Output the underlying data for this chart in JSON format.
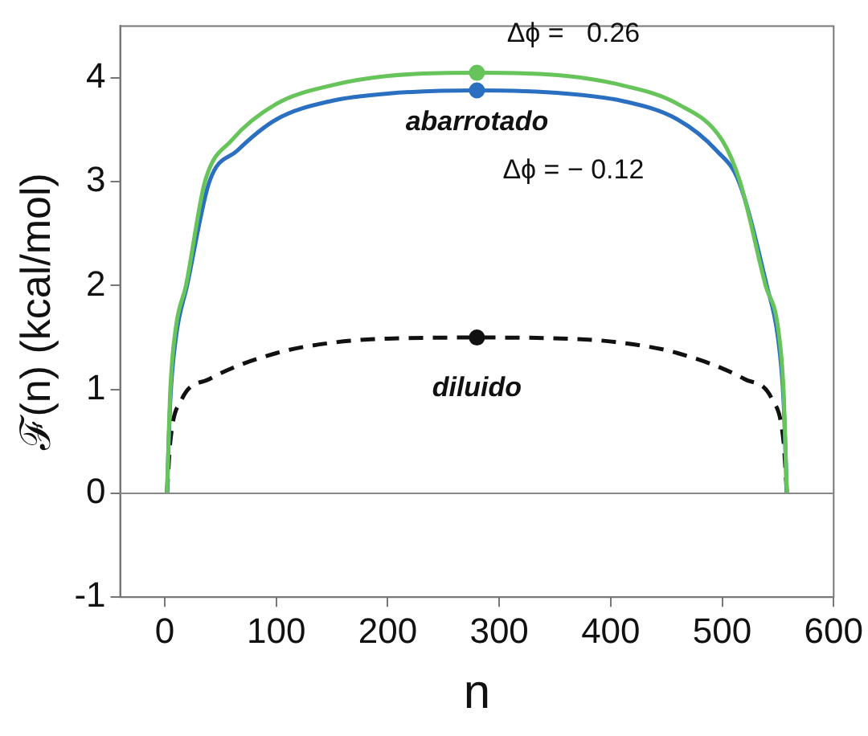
{
  "chart_data": {
    "type": "line",
    "xlabel": "n",
    "ylabel": "ℱ(n) (kcal/mol)",
    "xlim": [
      -40,
      600
    ],
    "xticks": [
      0,
      100,
      200,
      300,
      400,
      500,
      600
    ],
    "ylim": [
      -1,
      4.5
    ],
    "yticks": [
      -1,
      0,
      1,
      2,
      3,
      4
    ],
    "grid": false,
    "legend": false,
    "marker": "none",
    "series": [
      {
        "name": "Δϕ =   0.26",
        "color": "#66c45a",
        "x": [
          2,
          5,
          10,
          19,
          36,
          60,
          100,
          150,
          200,
          280,
          360,
          410,
          460,
          500,
          516,
          539,
          550,
          555,
          558
        ],
        "values": [
          0,
          1.0,
          1.6,
          2.0,
          3.0,
          3.4,
          3.75,
          3.93,
          4.02,
          4.05,
          4.02,
          3.93,
          3.75,
          3.4,
          3.0,
          2.0,
          1.6,
          1.0,
          0
        ]
      },
      {
        "name": "Δϕ = − 0.12",
        "color": "#2a6fc0",
        "x": [
          2,
          5,
          10,
          20,
          40,
          65,
          100,
          150,
          200,
          280,
          360,
          410,
          460,
          495,
          515,
          540,
          550,
          555,
          558
        ],
        "values": [
          0,
          0.9,
          1.5,
          2.0,
          3.0,
          3.3,
          3.6,
          3.78,
          3.85,
          3.88,
          3.85,
          3.78,
          3.6,
          3.3,
          3.0,
          2.0,
          1.5,
          0.9,
          0
        ]
      },
      {
        "name": "diluido",
        "color": "#111111",
        "line_style": "dashed",
        "x": [
          2,
          5,
          15,
          40,
          100,
          150,
          200,
          280,
          360,
          410,
          460,
          520,
          545,
          555,
          558
        ],
        "values": [
          0,
          0.5,
          0.9,
          1.1,
          1.35,
          1.45,
          1.49,
          1.5,
          1.49,
          1.45,
          1.35,
          1.1,
          0.9,
          0.5,
          0
        ]
      },
      {
        "type": "scatter",
        "marker": "circle",
        "color": "#66c45a",
        "x": [
          280
        ],
        "values": [
          4.05
        ]
      },
      {
        "type": "scatter",
        "marker": "circle",
        "color": "#2a6fc0",
        "x": [
          280
        ],
        "values": [
          3.88
        ]
      },
      {
        "type": "scatter",
        "marker": "circle",
        "color": "#111111",
        "x": [
          280
        ],
        "values": [
          1.5
        ]
      }
    ],
    "ref_lines": [
      {
        "axis": "y",
        "value": 0,
        "color": "#888888"
      }
    ],
    "annotations": [
      "abarrotado"
    ]
  }
}
